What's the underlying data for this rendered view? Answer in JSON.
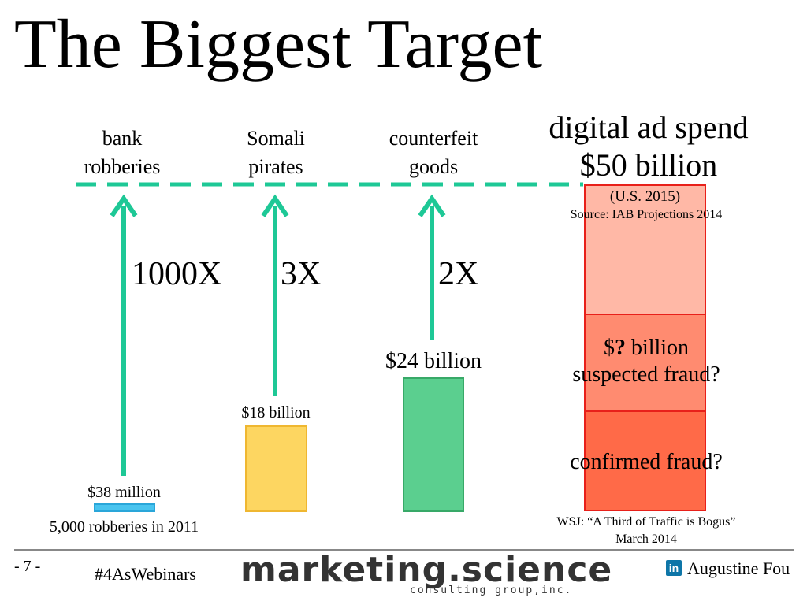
{
  "title": "The Biggest Target",
  "chart_data": {
    "type": "bar",
    "categories": [
      "bank\nrobberies",
      "Somali\npirates",
      "counterfeit\ngoods",
      "digital ad spend\n$50 billion"
    ],
    "values_usd_billion": [
      0.038,
      18,
      24,
      50
    ],
    "value_labels": [
      "$38 million",
      "$18 billion",
      "$24 billion"
    ],
    "multipliers": [
      "1000X",
      "3X",
      "2X"
    ],
    "bar_colors": [
      "#49c4ef",
      "#fdd661",
      "#5bcf8f"
    ],
    "stack_segments": [
      {
        "label": "",
        "fill": "#ffb8a6"
      },
      {
        "label": "$? billion\nsuspected fraud?",
        "fill": "#ff8b70"
      },
      {
        "label": "confirmed fraud?",
        "fill": "#ff6a48"
      }
    ],
    "annotations": {
      "bank_note": "5,000 robberies in 2011",
      "digital_scope": "(U.S. 2015)",
      "digital_source": "Source: IAB Projections 2014",
      "wsj_line1": "WSJ: “A Third of Traffic is Bogus”",
      "wsj_line2": "March 2014"
    },
    "colors": {
      "arrow": "#1ec896",
      "dash": "#1ec896",
      "stack_border": "#e8201a"
    }
  },
  "footer": {
    "page": "- 7 -",
    "hashtag": "#4AsWebinars",
    "logo": "marketing.science",
    "logo_sub": "consulting group,inc.",
    "linkedin_icon": "in",
    "author": "Augustine Fou"
  }
}
